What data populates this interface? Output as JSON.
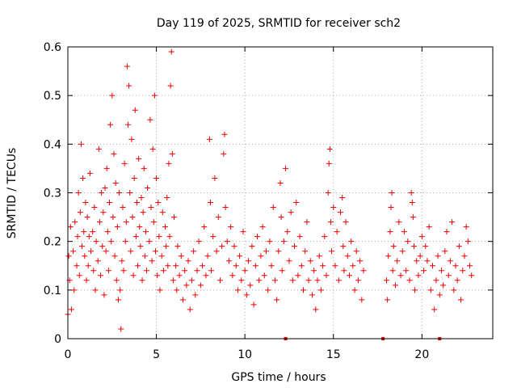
{
  "chart_data": {
    "type": "scatter",
    "title": "Day 119 of 2025, SRMTID for receiver sch2",
    "xlabel": "GPS time / hours",
    "ylabel": "SRMTID / TECUs",
    "xlim": [
      0,
      24
    ],
    "ylim": [
      0,
      0.6
    ],
    "xticks": [
      0,
      5,
      10,
      15,
      20
    ],
    "yticks": [
      0,
      0.1,
      0.2,
      0.3,
      0.4,
      0.5,
      0.6
    ],
    "grid": true,
    "marker": "plus",
    "color": "#ee0000",
    "series": [
      {
        "name": "SRMTID",
        "points": [
          [
            0.0,
            0.05
          ],
          [
            0.05,
            0.17
          ],
          [
            0.1,
            0.12
          ],
          [
            0.15,
            0.23
          ],
          [
            0.2,
            0.06
          ],
          [
            0.3,
            0.18
          ],
          [
            0.35,
            0.1
          ],
          [
            0.4,
            0.24
          ],
          [
            0.5,
            0.15
          ],
          [
            0.55,
            0.21
          ],
          [
            0.6,
            0.3
          ],
          [
            0.65,
            0.13
          ],
          [
            0.7,
            0.26
          ],
          [
            0.75,
            0.4
          ],
          [
            0.8,
            0.19
          ],
          [
            0.85,
            0.33
          ],
          [
            0.9,
            0.22
          ],
          [
            0.95,
            0.17
          ],
          [
            1.0,
            0.28
          ],
          [
            1.05,
            0.12
          ],
          [
            1.1,
            0.25
          ],
          [
            1.15,
            0.15
          ],
          [
            1.2,
            0.21
          ],
          [
            1.25,
            0.34
          ],
          [
            1.3,
            0.18
          ],
          [
            1.4,
            0.22
          ],
          [
            1.45,
            0.14
          ],
          [
            1.5,
            0.27
          ],
          [
            1.55,
            0.1
          ],
          [
            1.6,
            0.2
          ],
          [
            1.7,
            0.16
          ],
          [
            1.75,
            0.39
          ],
          [
            1.8,
            0.24
          ],
          [
            1.85,
            0.13
          ],
          [
            1.9,
            0.3
          ],
          [
            1.95,
            0.19
          ],
          [
            2.0,
            0.26
          ],
          [
            2.05,
            0.09
          ],
          [
            2.1,
            0.31
          ],
          [
            2.15,
            0.18
          ],
          [
            2.2,
            0.35
          ],
          [
            2.25,
            0.22
          ],
          [
            2.3,
            0.14
          ],
          [
            2.35,
            0.28
          ],
          [
            2.4,
            0.44
          ],
          [
            2.45,
            0.2
          ],
          [
            2.5,
            0.5
          ],
          [
            2.55,
            0.25
          ],
          [
            2.6,
            0.38
          ],
          [
            2.65,
            0.17
          ],
          [
            2.7,
            0.32
          ],
          [
            2.75,
            0.12
          ],
          [
            2.8,
            0.23
          ],
          [
            2.85,
            0.08
          ],
          [
            2.9,
            0.3
          ],
          [
            2.95,
            0.1
          ],
          [
            3.0,
            0.02
          ],
          [
            3.05,
            0.16
          ],
          [
            3.1,
            0.27
          ],
          [
            3.15,
            0.14
          ],
          [
            3.2,
            0.36
          ],
          [
            3.25,
            0.2
          ],
          [
            3.3,
            0.24
          ],
          [
            3.35,
            0.56
          ],
          [
            3.4,
            0.44
          ],
          [
            3.45,
            0.52
          ],
          [
            3.5,
            0.3
          ],
          [
            3.55,
            0.18
          ],
          [
            3.6,
            0.41
          ],
          [
            3.65,
            0.25
          ],
          [
            3.7,
            0.13
          ],
          [
            3.75,
            0.33
          ],
          [
            3.8,
            0.47
          ],
          [
            3.85,
            0.21
          ],
          [
            3.9,
            0.28
          ],
          [
            3.95,
            0.15
          ],
          [
            4.0,
            0.37
          ],
          [
            4.05,
            0.23
          ],
          [
            4.1,
            0.19
          ],
          [
            4.15,
            0.29
          ],
          [
            4.2,
            0.12
          ],
          [
            4.25,
            0.26
          ],
          [
            4.3,
            0.35
          ],
          [
            4.35,
            0.17
          ],
          [
            4.4,
            0.22
          ],
          [
            4.45,
            0.14
          ],
          [
            4.5,
            0.31
          ],
          [
            4.6,
            0.2
          ],
          [
            4.65,
            0.45
          ],
          [
            4.7,
            0.27
          ],
          [
            4.75,
            0.16
          ],
          [
            4.8,
            0.39
          ],
          [
            4.85,
            0.24
          ],
          [
            4.9,
            0.5
          ],
          [
            4.95,
            0.18
          ],
          [
            5.0,
            0.33
          ],
          [
            5.05,
            0.13
          ],
          [
            5.1,
            0.28
          ],
          [
            5.15,
            0.21
          ],
          [
            5.2,
            0.1
          ],
          [
            5.3,
            0.17
          ],
          [
            5.35,
            0.26
          ],
          [
            5.4,
            0.14
          ],
          [
            5.5,
            0.23
          ],
          [
            5.55,
            0.19
          ],
          [
            5.6,
            0.29
          ],
          [
            5.65,
            0.15
          ],
          [
            5.7,
            0.36
          ],
          [
            5.75,
            0.21
          ],
          [
            5.8,
            0.52
          ],
          [
            5.85,
            0.59
          ],
          [
            5.9,
            0.38
          ],
          [
            5.95,
            0.12
          ],
          [
            6.0,
            0.25
          ],
          [
            6.1,
            0.15
          ],
          [
            6.15,
            0.1
          ],
          [
            6.2,
            0.19
          ],
          [
            6.3,
            0.13
          ],
          [
            6.4,
            0.17
          ],
          [
            6.5,
            0.08
          ],
          [
            6.6,
            0.14
          ],
          [
            6.7,
            0.11
          ],
          [
            6.8,
            0.16
          ],
          [
            6.9,
            0.06
          ],
          [
            7.0,
            0.12
          ],
          [
            7.1,
            0.18
          ],
          [
            7.2,
            0.09
          ],
          [
            7.3,
            0.14
          ],
          [
            7.4,
            0.2
          ],
          [
            7.5,
            0.11
          ],
          [
            7.6,
            0.15
          ],
          [
            7.7,
            0.23
          ],
          [
            7.8,
            0.13
          ],
          [
            7.9,
            0.17
          ],
          [
            8.0,
            0.41
          ],
          [
            8.05,
            0.28
          ],
          [
            8.1,
            0.14
          ],
          [
            8.2,
            0.21
          ],
          [
            8.3,
            0.33
          ],
          [
            8.4,
            0.18
          ],
          [
            8.5,
            0.25
          ],
          [
            8.6,
            0.12
          ],
          [
            8.7,
            0.19
          ],
          [
            8.8,
            0.38
          ],
          [
            8.85,
            0.42
          ],
          [
            8.9,
            0.27
          ],
          [
            9.0,
            0.2
          ],
          [
            9.1,
            0.16
          ],
          [
            9.2,
            0.23
          ],
          [
            9.3,
            0.13
          ],
          [
            9.4,
            0.19
          ],
          [
            9.5,
            0.15
          ],
          [
            9.6,
            0.1
          ],
          [
            9.7,
            0.17
          ],
          [
            9.8,
            0.12
          ],
          [
            9.9,
            0.22
          ],
          [
            10.0,
            0.14
          ],
          [
            10.1,
            0.09
          ],
          [
            10.2,
            0.16
          ],
          [
            10.3,
            0.11
          ],
          [
            10.4,
            0.19
          ],
          [
            10.5,
            0.07
          ],
          [
            10.6,
            0.15
          ],
          [
            10.7,
            0.21
          ],
          [
            10.8,
            0.12
          ],
          [
            10.9,
            0.17
          ],
          [
            11.0,
            0.23
          ],
          [
            11.1,
            0.13
          ],
          [
            11.2,
            0.18
          ],
          [
            11.3,
            0.1
          ],
          [
            11.4,
            0.2
          ],
          [
            11.5,
            0.15
          ],
          [
            11.6,
            0.27
          ],
          [
            11.7,
            0.12
          ],
          [
            11.8,
            0.08
          ],
          [
            11.9,
            0.18
          ],
          [
            12.0,
            0.32
          ],
          [
            12.05,
            0.25
          ],
          [
            12.1,
            0.14
          ],
          [
            12.2,
            0.2
          ],
          [
            12.3,
            0.35
          ],
          [
            12.4,
            0.22
          ],
          [
            12.5,
            0.16
          ],
          [
            12.6,
            0.26
          ],
          [
            12.7,
            0.12
          ],
          [
            12.8,
            0.19
          ],
          [
            12.9,
            0.28
          ],
          [
            13.0,
            0.13
          ],
          [
            13.1,
            0.21
          ],
          [
            13.2,
            0.15
          ],
          [
            13.3,
            0.1
          ],
          [
            13.4,
            0.18
          ],
          [
            13.5,
            0.24
          ],
          [
            13.6,
            0.12
          ],
          [
            13.7,
            0.16
          ],
          [
            13.8,
            0.09
          ],
          [
            13.9,
            0.14
          ],
          [
            14.0,
            0.06
          ],
          [
            14.1,
            0.12
          ],
          [
            14.2,
            0.17
          ],
          [
            14.3,
            0.1
          ],
          [
            14.4,
            0.15
          ],
          [
            14.5,
            0.21
          ],
          [
            14.6,
            0.13
          ],
          [
            14.7,
            0.3
          ],
          [
            14.75,
            0.36
          ],
          [
            14.8,
            0.39
          ],
          [
            14.85,
            0.24
          ],
          [
            14.9,
            0.18
          ],
          [
            15.0,
            0.27
          ],
          [
            15.1,
            0.15
          ],
          [
            15.2,
            0.22
          ],
          [
            15.3,
            0.12
          ],
          [
            15.4,
            0.26
          ],
          [
            15.5,
            0.29
          ],
          [
            15.55,
            0.19
          ],
          [
            15.6,
            0.14
          ],
          [
            15.7,
            0.24
          ],
          [
            15.8,
            0.17
          ],
          [
            15.9,
            0.13
          ],
          [
            16.0,
            0.2
          ],
          [
            16.1,
            0.15
          ],
          [
            16.2,
            0.1
          ],
          [
            16.3,
            0.18
          ],
          [
            16.4,
            0.12
          ],
          [
            16.5,
            0.16
          ],
          [
            16.6,
            0.08
          ],
          [
            16.7,
            0.14
          ],
          [
            18.0,
            0.12
          ],
          [
            18.05,
            0.08
          ],
          [
            18.1,
            0.17
          ],
          [
            18.2,
            0.22
          ],
          [
            18.25,
            0.27
          ],
          [
            18.3,
            0.3
          ],
          [
            18.35,
            0.14
          ],
          [
            18.4,
            0.19
          ],
          [
            18.5,
            0.11
          ],
          [
            18.6,
            0.16
          ],
          [
            18.7,
            0.24
          ],
          [
            18.8,
            0.13
          ],
          [
            18.9,
            0.18
          ],
          [
            19.0,
            0.22
          ],
          [
            19.1,
            0.14
          ],
          [
            19.2,
            0.2
          ],
          [
            19.3,
            0.12
          ],
          [
            19.4,
            0.3
          ],
          [
            19.45,
            0.28
          ],
          [
            19.5,
            0.25
          ],
          [
            19.55,
            0.19
          ],
          [
            19.6,
            0.1
          ],
          [
            19.7,
            0.16
          ],
          [
            19.8,
            0.13
          ],
          [
            19.9,
            0.17
          ],
          [
            20.0,
            0.21
          ],
          [
            20.1,
            0.14
          ],
          [
            20.2,
            0.19
          ],
          [
            20.3,
            0.16
          ],
          [
            20.4,
            0.23
          ],
          [
            20.5,
            0.1
          ],
          [
            20.6,
            0.15
          ],
          [
            20.7,
            0.06
          ],
          [
            20.8,
            0.12
          ],
          [
            20.9,
            0.17
          ],
          [
            21.0,
            0.09
          ],
          [
            21.1,
            0.14
          ],
          [
            21.2,
            0.11
          ],
          [
            21.3,
            0.18
          ],
          [
            21.4,
            0.22
          ],
          [
            21.5,
            0.13
          ],
          [
            21.6,
            0.16
          ],
          [
            21.7,
            0.24
          ],
          [
            21.8,
            0.1
          ],
          [
            21.9,
            0.15
          ],
          [
            22.0,
            0.12
          ],
          [
            22.1,
            0.19
          ],
          [
            22.2,
            0.08
          ],
          [
            22.3,
            0.14
          ],
          [
            22.4,
            0.17
          ],
          [
            22.5,
            0.23
          ],
          [
            22.6,
            0.2
          ],
          [
            22.7,
            0.15
          ],
          [
            22.8,
            0.13
          ]
        ],
        "zero_markers": [
          12.3,
          17.8,
          21.0
        ]
      }
    ]
  }
}
